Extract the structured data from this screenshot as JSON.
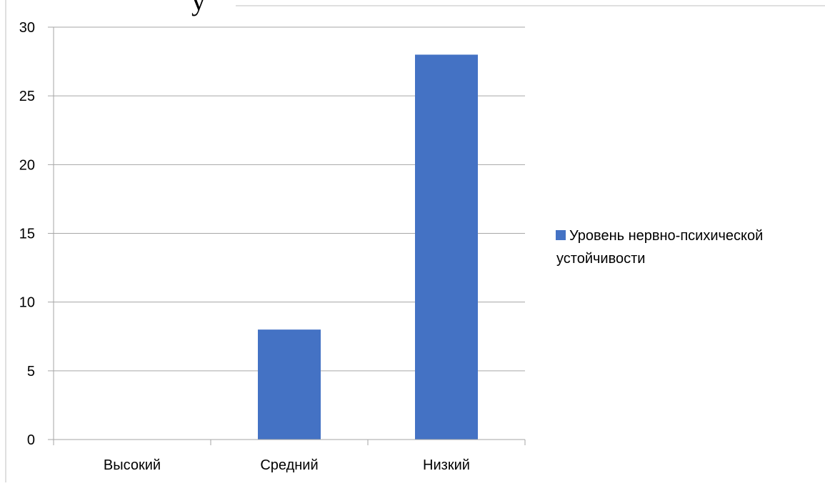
{
  "chart_data": {
    "type": "bar",
    "title": "",
    "xlabel": "",
    "ylabel": "",
    "categories": [
      "Высокий",
      "Средний",
      "Низкий"
    ],
    "series": [
      {
        "name": "Уровень нервно-психической устойчивости",
        "values": [
          0,
          8,
          28
        ],
        "color": "#4472c4"
      }
    ],
    "ylim": [
      0,
      30
    ],
    "yticks": [
      0,
      5,
      10,
      15,
      20,
      25,
      30
    ],
    "grid": true,
    "legend_position": "right"
  },
  "legend": {
    "lines": [
      "Уровень нервно-психической",
      "устойчивости"
    ]
  },
  "colors": {
    "bar": "#4472c4",
    "grid": "#a6a6a6"
  }
}
